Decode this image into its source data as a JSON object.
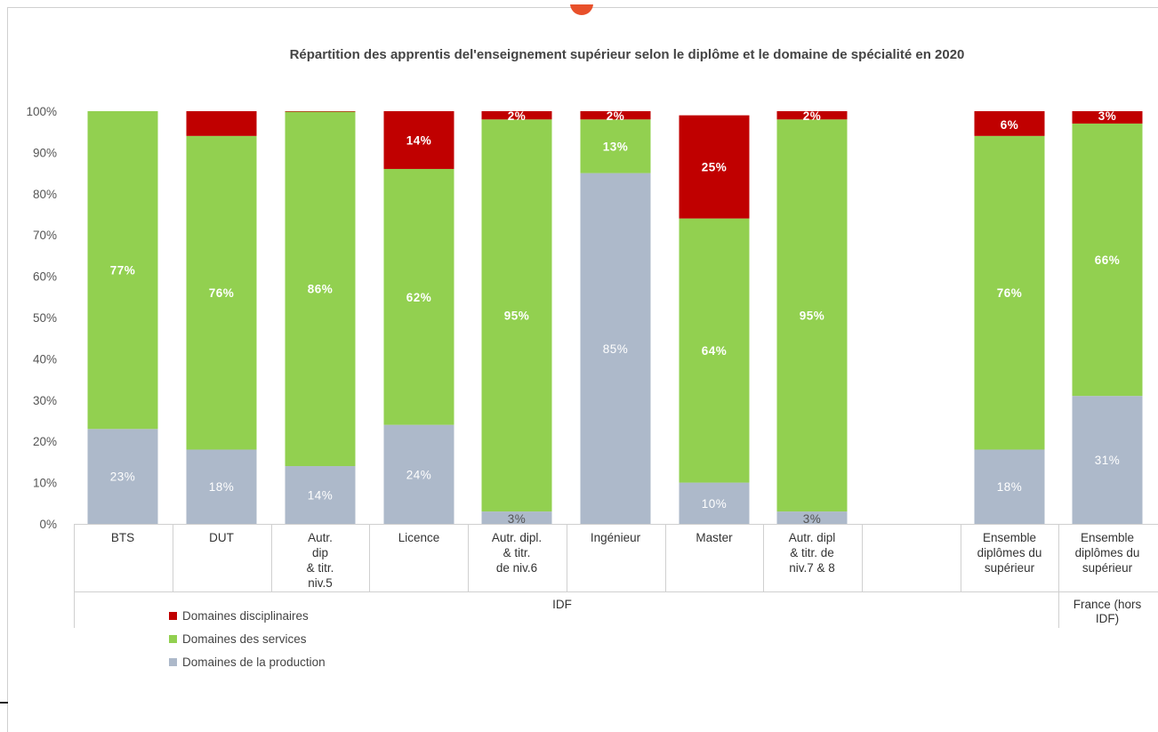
{
  "chart_data": {
    "type": "bar",
    "stacked": true,
    "percent": true,
    "title": "Répartition des apprentis del'enseignement supérieur selon le diplôme et le domaine de spécialité en 2020",
    "ylim": [
      0,
      100
    ],
    "yticks": [
      "0%",
      "10%",
      "20%",
      "30%",
      "40%",
      "50%",
      "60%",
      "70%",
      "80%",
      "90%",
      "100%"
    ],
    "grid": false,
    "legend_position": "bottom-left",
    "categories": [
      [
        "BTS"
      ],
      [
        "DUT"
      ],
      [
        "Autr.",
        "dip",
        "& titr.",
        "niv.5"
      ],
      [
        "Licence"
      ],
      [
        "Autr. dipl.",
        "& titr.",
        "de niv.6"
      ],
      [
        "Ingénieur"
      ],
      [
        "Master"
      ],
      [
        "Autr. dipl",
        "& titr. de",
        "niv.7 & 8"
      ],
      [
        "Ensemble",
        "diplômes du",
        "supérieur"
      ],
      [
        "Ensemble",
        "diplômes du",
        "supérieur"
      ]
    ],
    "groups": [
      {
        "label": [
          "IDF"
        ],
        "span": [
          0,
          8
        ]
      },
      {
        "label": [
          "France (hors",
          "IDF)"
        ],
        "span": [
          9,
          9
        ]
      }
    ],
    "series": [
      {
        "name": "Domaines de la production",
        "color": "#adb9ca",
        "values": [
          23,
          18,
          14,
          24,
          3,
          85,
          10,
          3,
          18,
          31
        ],
        "labels": [
          "23%",
          "18%",
          "14%",
          "24%",
          "3%",
          "85%",
          "10%",
          "3%",
          "18%",
          "31%"
        ]
      },
      {
        "name": "Domaines des services",
        "color": "#92d050",
        "values": [
          77,
          76,
          86,
          62,
          95,
          13,
          64,
          95,
          76,
          66
        ],
        "labels": [
          "77%",
          "76%",
          "86%",
          "62%",
          "95%",
          "13%",
          "64%",
          "95%",
          "76%",
          "66%"
        ]
      },
      {
        "name": "Domaines disciplinaires",
        "color": "#c00000",
        "values": [
          0,
          6,
          0.4,
          14,
          2,
          2,
          25,
          2,
          6,
          3
        ],
        "labels": [
          "",
          "",
          "",
          "14%",
          "2%",
          "2%",
          "25%",
          "2%",
          "6%",
          "3%"
        ]
      }
    ],
    "legend_order": [
      2,
      1,
      0
    ]
  }
}
